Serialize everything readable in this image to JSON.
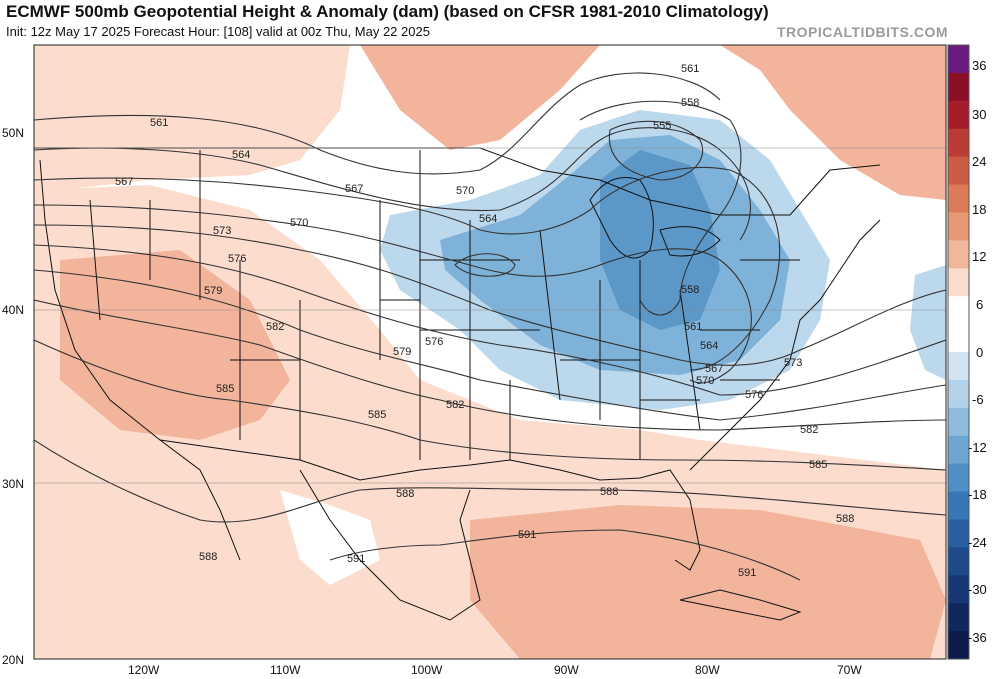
{
  "header": {
    "title": "ECMWF 500mb Geopotential Height & Anomaly (dam) (based on CFSR 1981-2010 Climatology)",
    "subtitle": "Init: 12z May 17 2025   Forecast Hour: [108]   valid at 00z Thu, May 22 2025",
    "brand": "TROPICALTIDBITS.COM"
  },
  "map": {
    "lat_labels": [
      "50N",
      "40N",
      "30N",
      "20N"
    ],
    "lon_labels": [
      "120W",
      "110W",
      "100W",
      "90W",
      "80W",
      "70W"
    ],
    "contour_labels": [
      "561",
      "564",
      "567",
      "570",
      "573",
      "576",
      "579",
      "582",
      "585",
      "588",
      "591",
      "555",
      "558",
      "561",
      "564",
      "567",
      "570",
      "573",
      "576",
      "579",
      "582",
      "585",
      "588",
      "588",
      "591",
      "591",
      "561",
      "558",
      "567",
      "564",
      "570",
      "576",
      "582",
      "585",
      "588"
    ],
    "colors": {
      "positive": "#f2b49a",
      "positive_light": "#fbdccd",
      "negative": "#7fb2d8",
      "negative_dark": "#5b98c8",
      "negative_light": "#bcd8ec"
    }
  },
  "colorbar": {
    "labels": [
      "36",
      "30",
      "24",
      "18",
      "12",
      "6",
      "0",
      "-6",
      "-12",
      "-18",
      "-24",
      "-30",
      "-36"
    ],
    "colors": [
      "#6a1b80",
      "#8b0f26",
      "#a51c2a",
      "#bb3c34",
      "#cd5c44",
      "#db7a58",
      "#e69a74",
      "#f0b89a",
      "#f9dccb",
      "#ffffff",
      "#ffffff",
      "#d2e4f1",
      "#b3d1e8",
      "#8fbcdd",
      "#6ea6d2",
      "#4f8fc5",
      "#3877b5",
      "#2a60a1",
      "#1f4a8a",
      "#183775",
      "#13275f",
      "#0f1a4c"
    ]
  }
}
